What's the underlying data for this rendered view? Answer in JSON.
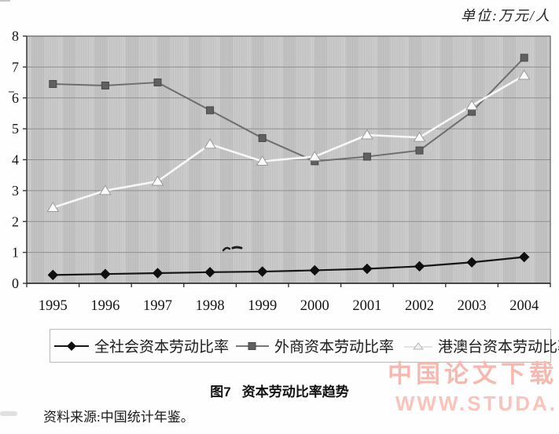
{
  "page": {
    "unit_label": "单位:万元/人",
    "caption_fig": "图7",
    "caption_title": "资本劳动比率趋势",
    "source_note": "资料来源:中国统计年鉴。",
    "watermark": {
      "line1": "中国论文下载",
      "line2": "WWW.STUDA.",
      "color": "#f6b9b0"
    }
  },
  "chart_data": {
    "type": "line",
    "title": "图7 资本劳动比率趋势",
    "unit": "万元/人",
    "categories": [
      "1995",
      "1996",
      "1997",
      "1998",
      "1999",
      "2000",
      "2001",
      "2002",
      "2003",
      "2004"
    ],
    "series": [
      {
        "name": "全社会资本劳动比率",
        "marker": "diamond",
        "line_color": "#161616",
        "marker_fill": "#0f0f0f",
        "marker_stroke": "#0f0f0f",
        "line_width": 2.2,
        "values": [
          0.27,
          0.3,
          0.33,
          0.36,
          0.38,
          0.42,
          0.47,
          0.55,
          0.68,
          0.85
        ]
      },
      {
        "name": "外商资本劳动比率",
        "marker": "square",
        "line_color": "#6e6e6e",
        "marker_fill": "#606060",
        "marker_stroke": "#484848",
        "line_width": 2,
        "values": [
          6.45,
          6.4,
          6.5,
          5.6,
          4.7,
          3.95,
          4.1,
          4.3,
          5.55,
          7.3
        ]
      },
      {
        "name": "港澳台资本劳动比率",
        "marker": "triangle",
        "line_color": "#f7f7f7",
        "marker_fill": "#fafafa",
        "marker_stroke": "#9a9a9a",
        "line_width": 2.6,
        "values": [
          2.45,
          3.0,
          3.3,
          4.5,
          3.95,
          4.1,
          4.8,
          4.72,
          5.75,
          6.73
        ]
      }
    ],
    "draw_order": [
      1,
      2,
      0
    ],
    "ylim": [
      0,
      8
    ],
    "yticks": [
      0,
      1,
      2,
      3,
      4,
      5,
      6,
      7,
      8
    ],
    "grid": true,
    "legend_position": "bottom",
    "plot_bg_color": "#c6c6c6",
    "gridline_color": "#8f8f8f",
    "axis_color": "#3a3a3a"
  }
}
